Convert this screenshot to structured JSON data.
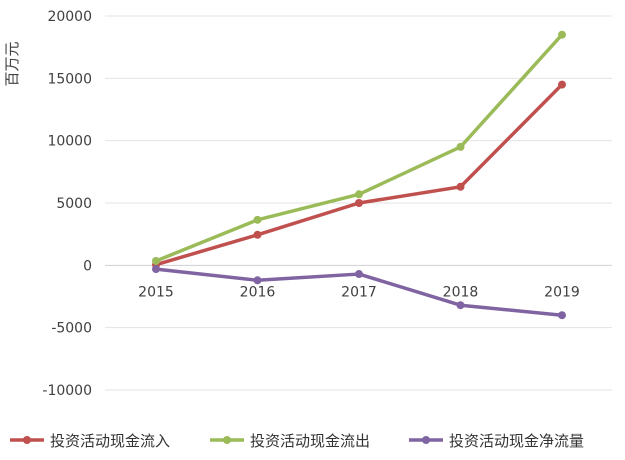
{
  "chart_data": {
    "type": "line",
    "title": "",
    "xlabel": "",
    "ylabel": "百万元",
    "categories": [
      "2015",
      "2016",
      "2017",
      "2018",
      "2019"
    ],
    "ylim": [
      -10000,
      20000
    ],
    "yticks": [
      20000,
      15000,
      10000,
      5000,
      0,
      -5000,
      -10000
    ],
    "grid": true,
    "legend_position": "bottom",
    "series": [
      {
        "name": "投资活动现金流入",
        "color": "#c0504d",
        "values": [
          50,
          2450,
          5000,
          6300,
          14500
        ]
      },
      {
        "name": "投资活动现金流出",
        "color": "#9bbb59",
        "values": [
          350,
          3650,
          5700,
          9500,
          18500
        ]
      },
      {
        "name": "投资活动现金净流量",
        "color": "#8064a2",
        "values": [
          -300,
          -1200,
          -700,
          -3200,
          -4000
        ]
      }
    ]
  }
}
